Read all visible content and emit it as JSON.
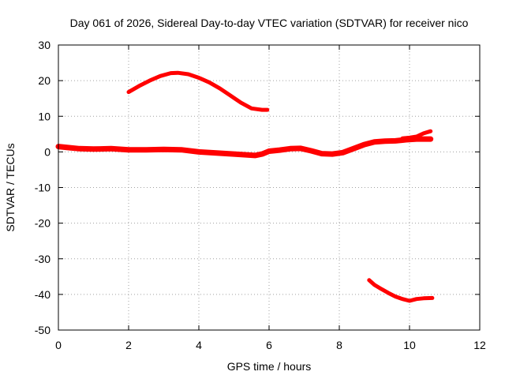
{
  "chart_data": {
    "type": "scatter",
    "title": "Day 061 of 2026, Sidereal Day-to-day VTEC variation (SDTVAR) for receiver nico",
    "xlabel": "GPS time / hours",
    "ylabel": "SDTVAR / TECUs",
    "xlim": [
      0,
      12
    ],
    "ylim": [
      -50,
      30
    ],
    "xticks": [
      0,
      2,
      4,
      6,
      8,
      10,
      12
    ],
    "yticks": [
      30,
      20,
      10,
      0,
      -10,
      -20,
      -30,
      -40,
      -50
    ],
    "grid": true,
    "color": "#ff0000",
    "series": [
      {
        "name": "main",
        "x": [
          0.0,
          0.3,
          0.6,
          1.0,
          1.5,
          2.0,
          2.5,
          3.0,
          3.5,
          4.0,
          4.5,
          5.0,
          5.3,
          5.6,
          5.8,
          6.0,
          6.3,
          6.6,
          6.9,
          7.2,
          7.5,
          7.8,
          8.1,
          8.4,
          8.7,
          9.0,
          9.3,
          9.6,
          9.9,
          10.2,
          10.4,
          10.6
        ],
        "y": [
          1.5,
          1.2,
          0.9,
          0.8,
          0.9,
          0.6,
          0.6,
          0.7,
          0.6,
          0.0,
          -0.3,
          -0.6,
          -0.8,
          -1.0,
          -0.6,
          0.2,
          0.5,
          0.9,
          1.0,
          0.3,
          -0.5,
          -0.6,
          -0.2,
          0.9,
          2.0,
          2.8,
          3.0,
          3.1,
          3.4,
          3.6,
          3.6,
          3.6
        ]
      },
      {
        "name": "upper-arc",
        "x": [
          2.0,
          2.3,
          2.6,
          2.9,
          3.2,
          3.4,
          3.7,
          4.0,
          4.3,
          4.6,
          4.9,
          5.2,
          5.5,
          5.8,
          5.95
        ],
        "y": [
          16.8,
          18.5,
          20.0,
          21.3,
          22.1,
          22.2,
          21.8,
          20.8,
          19.5,
          17.8,
          15.8,
          13.8,
          12.2,
          11.8,
          11.8
        ]
      },
      {
        "name": "lower-arc",
        "x": [
          8.85,
          9.0,
          9.2,
          9.4,
          9.6,
          9.8,
          10.0,
          10.2,
          10.4,
          10.65
        ],
        "y": [
          -36.0,
          -37.3,
          -38.5,
          -39.6,
          -40.6,
          -41.3,
          -41.8,
          -41.3,
          -41.1,
          -41.0
        ]
      },
      {
        "name": "upper-tail",
        "x": [
          9.8,
          10.0,
          10.2,
          10.4,
          10.6
        ],
        "y": [
          3.8,
          4.0,
          4.3,
          5.2,
          5.8
        ]
      }
    ]
  }
}
